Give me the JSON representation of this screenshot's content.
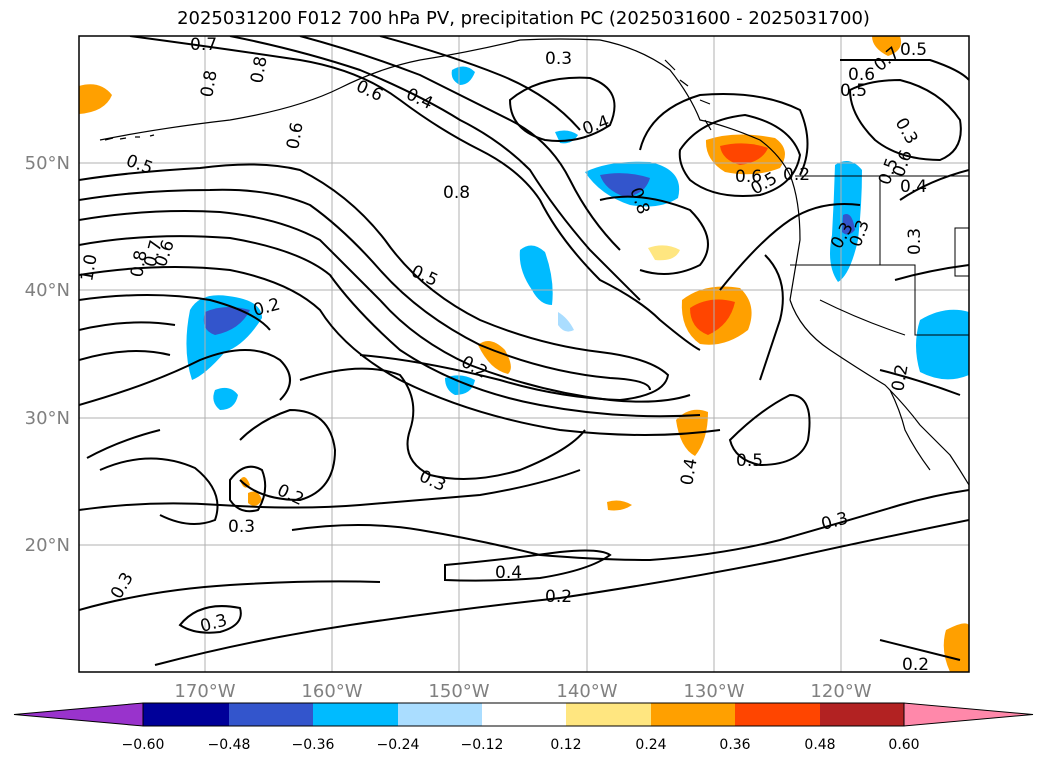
{
  "title": "2025031200 F012 700 hPa PV, precipitation PC (2025031600 - 2025031700)",
  "lat_labels": [
    "50°N",
    "40°N",
    "30°N",
    "20°N"
  ],
  "lon_labels": [
    "170°W",
    "160°W",
    "150°W",
    "140°W",
    "130°W",
    "120°W"
  ],
  "colorbar": {
    "ticks": [
      "−0.60",
      "−0.48",
      "−0.36",
      "−0.24",
      "−0.12",
      "0.12",
      "0.24",
      "0.36",
      "0.48",
      "0.60"
    ],
    "colors": [
      "#9933cc",
      "#000099",
      "#3355cc",
      "#00bbff",
      "#aaddff",
      "#ffffff",
      "#ffe680",
      "#ffa000",
      "#ff4500",
      "#b22222",
      "#ff88aa"
    ]
  },
  "contour_labels": [
    "0.7",
    "0.8",
    "0.8",
    "0.6",
    "0.6",
    "0.4",
    "0.3",
    "0.4",
    "0.8",
    "0.7",
    "0.6",
    "0.5",
    "0.3",
    "0.5",
    "0.5",
    "0.6",
    "0.8",
    "1.0",
    "0.8",
    "0.7",
    "0.6",
    "0.5",
    "0.2",
    "0.5",
    "0.2",
    "0.3",
    "0.3",
    "0.6",
    "0.5",
    "0.4",
    "0.2",
    "0.2",
    "0.4",
    "0.5",
    "0.2",
    "0.3",
    "0.3",
    "0.4",
    "0.2",
    "0.3",
    "0.3",
    "0.2",
    "0.3",
    "0.3"
  ]
}
